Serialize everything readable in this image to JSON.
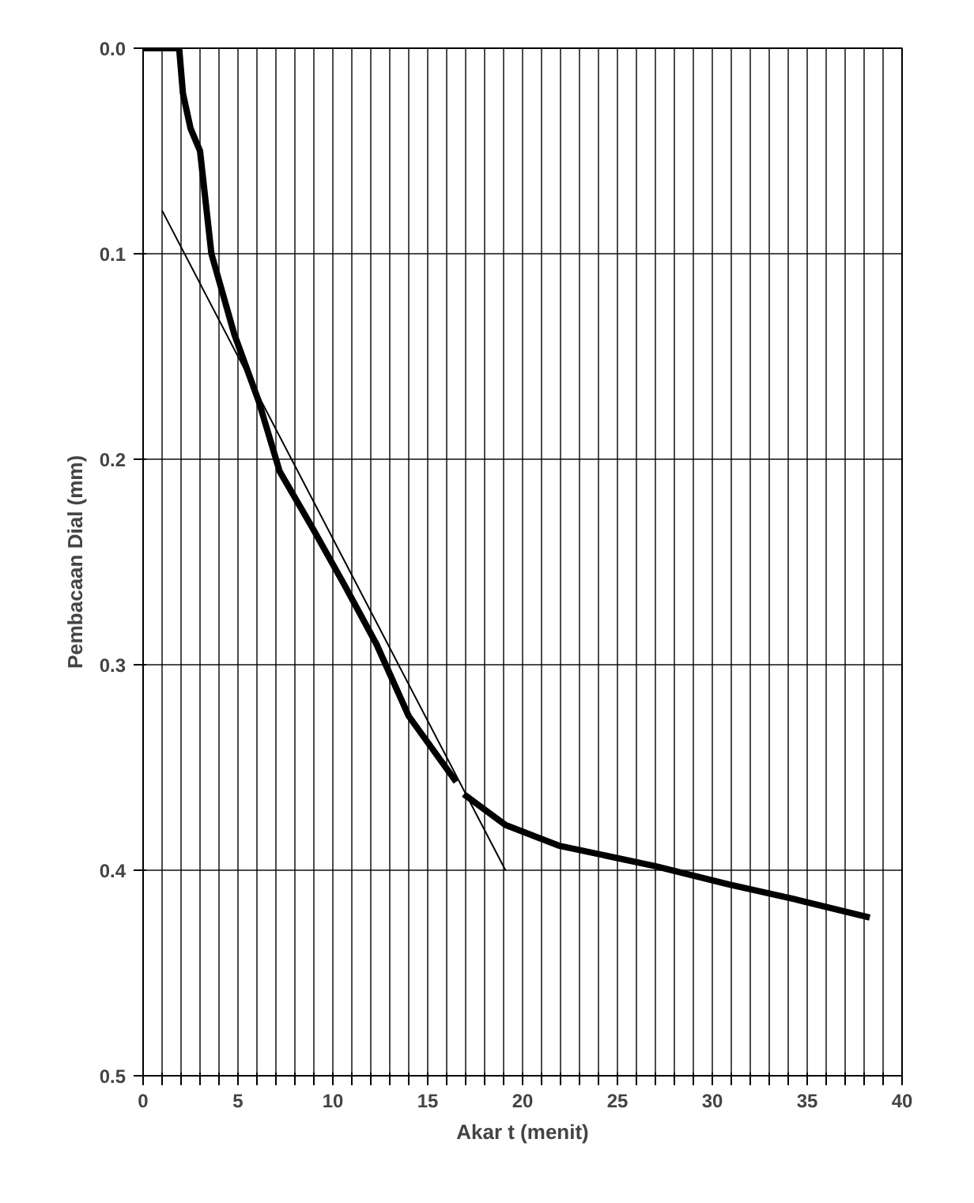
{
  "chart_data": {
    "type": "line",
    "xlabel": "Akar t (menit)",
    "ylabel": "Pembacaan Dial (mm)",
    "xlim": [
      0,
      40
    ],
    "ylim": [
      0.5,
      0.0
    ],
    "xticks": [
      0,
      {
        "value": 1,
        "label": null
      },
      {
        "value": 2,
        "label": null
      },
      {
        "value": 3,
        "label": null
      },
      {
        "value": 4,
        "label": null
      },
      5,
      {
        "value": 6,
        "label": null
      },
      {
        "value": 7,
        "label": null
      },
      {
        "value": 8,
        "label": null
      },
      {
        "value": 9,
        "label": null
      },
      10,
      {
        "value": 11,
        "label": null
      },
      {
        "value": 12,
        "label": null
      },
      {
        "value": 13,
        "label": null
      },
      {
        "value": 14,
        "label": null
      },
      15,
      {
        "value": 16,
        "label": null
      },
      {
        "value": 17,
        "label": null
      },
      {
        "value": 18,
        "label": null
      },
      {
        "value": 19,
        "label": null
      },
      20,
      {
        "value": 21,
        "label": null
      },
      {
        "value": 22,
        "label": null
      },
      {
        "value": 23,
        "label": null
      },
      {
        "value": 24,
        "label": null
      },
      25,
      {
        "value": 26,
        "label": null
      },
      {
        "value": 27,
        "label": null
      },
      {
        "value": 28,
        "label": null
      },
      {
        "value": 29,
        "label": null
      },
      30,
      {
        "value": 31,
        "label": null
      },
      {
        "value": 32,
        "label": null
      },
      {
        "value": 33,
        "label": null
      },
      {
        "value": 34,
        "label": null
      },
      35,
      {
        "value": 36,
        "label": null
      },
      {
        "value": 37,
        "label": null
      },
      {
        "value": 38,
        "label": null
      },
      {
        "value": 39,
        "label": null
      },
      40
    ],
    "yticks": [
      {
        "value": 0.0,
        "label": "0.0"
      },
      {
        "value": 0.1,
        "label": "0.1"
      },
      {
        "value": 0.2,
        "label": "0.2"
      },
      {
        "value": 0.3,
        "label": "0.3"
      },
      {
        "value": 0.4,
        "label": "0.4"
      },
      {
        "value": 0.5,
        "label": "0.5"
      }
    ],
    "grid": true,
    "marker": "none",
    "line_style": "solid",
    "series": [
      {
        "color": "#000000",
        "x": [
          0.0,
          1.9,
          2.1,
          2.5,
          3.0,
          3.6,
          4.8,
          6.1,
          7.2,
          8.9,
          10.6,
          12.3,
          14.0,
          16.5
        ],
        "values": [
          0.0,
          0.0,
          0.022,
          0.039,
          0.05,
          0.1,
          0.139,
          0.172,
          0.206,
          0.233,
          0.261,
          0.29,
          0.325,
          0.357
        ]
      },
      {
        "color": "#000000",
        "x": [
          16.9,
          19.1,
          21.9,
          27.0,
          30.9,
          34.3,
          38.3
        ],
        "values": [
          0.363,
          0.378,
          0.388,
          0.398,
          0.407,
          0.414,
          0.423
        ]
      },
      {
        "color": "#000000",
        "x": [
          1.0,
          19.1
        ],
        "values": [
          0.079,
          0.4
        ]
      }
    ]
  }
}
